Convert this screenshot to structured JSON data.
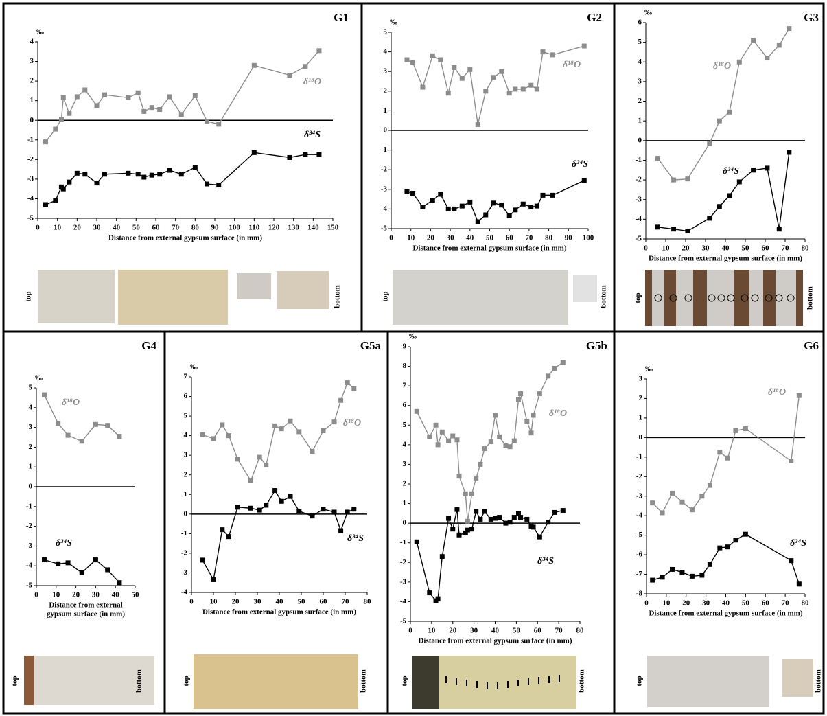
{
  "chart_data": [
    {
      "type": "line",
      "title": "G1",
      "y_unit": "‰",
      "x_label": "Distance from external gypsum surface (in mm)",
      "x": [
        4,
        9,
        12,
        13,
        16,
        20,
        24,
        30,
        34,
        46,
        51,
        54,
        58,
        62,
        67,
        73,
        80,
        86,
        92,
        110,
        128,
        136,
        143
      ],
      "series": [
        {
          "name": "δ¹⁸O",
          "color": "#8c8c8c",
          "values": [
            -1.1,
            -0.45,
            0.05,
            1.15,
            0.35,
            1.2,
            1.55,
            0.75,
            1.3,
            1.15,
            1.4,
            0.45,
            0.65,
            0.55,
            1.2,
            0.3,
            1.25,
            -0.05,
            -0.2,
            2.8,
            2.3,
            2.75,
            3.55
          ]
        },
        {
          "name": "δ³⁴S",
          "color": "#000000",
          "values": [
            -4.3,
            -4.1,
            -3.4,
            -3.5,
            -3.15,
            -2.7,
            -2.75,
            -3.2,
            -2.75,
            -2.7,
            -2.75,
            -2.9,
            -2.8,
            -2.75,
            -2.55,
            -2.75,
            -2.4,
            -3.25,
            -3.3,
            -1.65,
            -1.9,
            -1.75,
            -1.75
          ]
        }
      ],
      "xlim": [
        0,
        150
      ],
      "xticks": [
        0,
        10,
        20,
        30,
        40,
        50,
        60,
        70,
        80,
        90,
        100,
        110,
        120,
        130,
        140,
        150
      ],
      "ylim": [
        -5,
        4
      ],
      "yticks": [
        -5,
        -4,
        -3,
        -2,
        -1,
        0,
        1,
        2,
        3,
        4
      ],
      "photo_labels": [
        "top",
        "bottom"
      ]
    },
    {
      "type": "line",
      "title": "G2",
      "y_unit": "‰",
      "x_label": "Distance from external gypsum surface (in mm)",
      "x": [
        8,
        11,
        16,
        21,
        25,
        29,
        32,
        36,
        40,
        44,
        48,
        52,
        56,
        60,
        63,
        67,
        71,
        74,
        77,
        82,
        98
      ],
      "series": [
        {
          "name": "δ¹⁸O",
          "color": "#8c8c8c",
          "values": [
            3.6,
            3.45,
            2.2,
            3.8,
            3.6,
            1.9,
            3.2,
            2.65,
            3.1,
            0.3,
            2.0,
            2.7,
            3.0,
            1.9,
            2.1,
            2.1,
            2.3,
            2.1,
            4.0,
            3.85,
            4.3
          ]
        },
        {
          "name": "δ³⁴S",
          "color": "#000000",
          "values": [
            -3.1,
            -3.2,
            -3.9,
            -3.55,
            -3.25,
            -4.0,
            -4.0,
            -3.85,
            -3.65,
            -4.65,
            -4.3,
            -3.7,
            -3.8,
            -4.35,
            -4.05,
            -3.75,
            -3.9,
            -3.85,
            -3.3,
            -3.3,
            -2.55
          ]
        }
      ],
      "xlim": [
        0,
        100
      ],
      "xticks": [
        0,
        10,
        20,
        30,
        40,
        50,
        60,
        70,
        80,
        90,
        100
      ],
      "ylim": [
        -5,
        5
      ],
      "yticks": [
        -5,
        -4,
        -3,
        -2,
        -1,
        0,
        1,
        2,
        3,
        4,
        5
      ],
      "photo_labels": [
        "top",
        "bottom"
      ]
    },
    {
      "type": "line",
      "title": "G3",
      "y_unit": "‰",
      "x_label": "Distance from external gypsum surface (in mm)",
      "x": [
        6,
        14,
        21,
        32,
        37,
        42,
        47,
        54,
        61,
        67,
        72
      ],
      "series": [
        {
          "name": "δ¹⁸O",
          "color": "#8c8c8c",
          "values": [
            -0.9,
            -2.0,
            -1.95,
            -0.15,
            1.0,
            1.45,
            4.0,
            5.1,
            4.2,
            4.85,
            5.7
          ]
        },
        {
          "name": "δ³⁴S",
          "color": "#000000",
          "values": [
            -4.4,
            -4.5,
            -4.6,
            -3.95,
            -3.35,
            -2.8,
            -2.1,
            -1.5,
            -1.4,
            -4.5,
            -0.6
          ]
        }
      ],
      "xlim": [
        0,
        80
      ],
      "xticks": [
        0,
        10,
        20,
        30,
        40,
        50,
        60,
        70,
        80
      ],
      "ylim": [
        -5,
        6
      ],
      "yticks": [
        -5,
        -4,
        -3,
        -2,
        -1,
        0,
        1,
        2,
        3,
        4,
        5,
        6
      ],
      "photo_labels": [
        "top",
        "bottom"
      ]
    },
    {
      "type": "line",
      "title": "G4",
      "y_unit": "‰",
      "x_label": [
        "Distance from external",
        "gypsum surface (in mm)"
      ],
      "x": [
        4,
        11,
        16,
        23,
        30,
        36,
        42
      ],
      "series": [
        {
          "name": "δ¹⁸O",
          "color": "#8c8c8c",
          "values": [
            4.65,
            3.2,
            2.6,
            2.3,
            3.15,
            3.1,
            2.55
          ]
        },
        {
          "name": "δ³⁴S",
          "color": "#000000",
          "values": [
            -3.7,
            -3.9,
            -3.85,
            -4.35,
            -3.7,
            -4.2,
            -4.85
          ]
        }
      ],
      "xlim": [
        0,
        50
      ],
      "xticks": [
        0,
        10,
        20,
        30,
        40,
        50
      ],
      "ylim": [
        -5,
        5
      ],
      "yticks": [
        -5,
        -4,
        -3,
        -2,
        -1,
        0,
        1,
        2,
        3,
        4,
        5
      ],
      "photo_labels": [
        "top",
        "bottom"
      ]
    },
    {
      "type": "line",
      "title": "G5a",
      "y_unit": "‰",
      "x_label": "Distance from external gypsum surface (in mm)",
      "x": [
        5,
        10,
        14,
        17,
        21,
        27,
        31,
        34,
        38,
        41,
        45,
        49,
        55,
        60,
        65,
        68,
        71,
        74
      ],
      "series": [
        {
          "name": "δ¹⁸O",
          "color": "#8c8c8c",
          "values": [
            4.05,
            3.85,
            4.55,
            4.0,
            2.8,
            1.7,
            2.9,
            2.5,
            4.5,
            4.35,
            4.75,
            4.2,
            3.2,
            4.25,
            4.7,
            5.8,
            6.7,
            6.4
          ]
        },
        {
          "name": "δ³⁴S",
          "color": "#000000",
          "values": [
            -2.35,
            -3.35,
            -0.8,
            -1.15,
            0.35,
            0.3,
            0.2,
            0.45,
            1.2,
            0.65,
            0.9,
            0.15,
            -0.1,
            0.25,
            0.1,
            -0.85,
            0.1,
            0.25
          ]
        }
      ],
      "xlim": [
        0,
        80
      ],
      "xticks": [
        0,
        10,
        20,
        30,
        40,
        50,
        60,
        70,
        80
      ],
      "ylim": [
        -4,
        7
      ],
      "yticks": [
        -4,
        -3,
        -2,
        -1,
        0,
        1,
        2,
        3,
        4,
        5,
        6,
        7
      ],
      "photo_labels": [
        "top",
        "bottom"
      ]
    },
    {
      "type": "line",
      "title": "G5b",
      "y_unit": "‰",
      "x_label": "Distance from external gypsum surface (in mm)",
      "x": [
        3,
        9,
        12,
        13,
        15,
        18,
        20,
        22,
        23,
        26,
        27,
        29,
        31,
        33,
        35,
        38,
        40,
        42,
        45,
        47,
        49,
        51,
        52,
        55,
        57,
        58,
        61,
        65,
        68,
        72
      ],
      "series": [
        {
          "name": "δ¹⁸O",
          "color": "#8c8c8c",
          "values": [
            5.7,
            4.4,
            5.0,
            4.0,
            4.65,
            4.2,
            4.45,
            4.25,
            2.4,
            1.5,
            0.1,
            1.5,
            2.3,
            3.0,
            3.8,
            4.15,
            5.5,
            4.4,
            3.95,
            3.9,
            4.2,
            6.3,
            6.6,
            5.2,
            4.6,
            5.5,
            6.6,
            7.5,
            7.9,
            8.2
          ]
        },
        {
          "name": "δ³⁴S",
          "color": "#000000",
          "values": [
            -0.95,
            -3.55,
            -3.95,
            -3.85,
            -1.7,
            0.25,
            -0.3,
            0.7,
            -0.6,
            -0.5,
            -0.35,
            -0.3,
            0.6,
            0.2,
            0.6,
            0.2,
            0.25,
            0.3,
            0.0,
            0.05,
            0.3,
            0.5,
            0.3,
            0.2,
            -0.15,
            -0.2,
            -0.7,
            0.05,
            0.55,
            0.65
          ]
        }
      ],
      "xlim": [
        0,
        80
      ],
      "xticks": [
        0,
        10,
        20,
        30,
        40,
        50,
        60,
        70,
        80
      ],
      "ylim": [
        -5,
        9
      ],
      "yticks": [
        -5,
        -4,
        -3,
        -2,
        -1,
        0,
        1,
        2,
        3,
        4,
        5,
        6,
        7,
        8,
        9
      ],
      "photo_labels": [
        "top",
        "bottom"
      ]
    },
    {
      "type": "line",
      "title": "G6",
      "y_unit": "‰",
      "x_label": "Distance from external gypsum surface (in mm)",
      "x": [
        3,
        8,
        13,
        18,
        23,
        28,
        32,
        37,
        41,
        45,
        50,
        73,
        77
      ],
      "series": [
        {
          "name": "δ¹⁸O",
          "color": "#8c8c8c",
          "values": [
            -3.35,
            -3.85,
            -2.85,
            -3.3,
            -3.7,
            -3.0,
            -2.45,
            -0.75,
            -1.05,
            0.35,
            0.45,
            -1.2,
            2.15
          ]
        },
        {
          "name": "δ³⁴S",
          "color": "#000000",
          "values": [
            -7.3,
            -7.15,
            -6.75,
            -6.9,
            -7.1,
            -7.05,
            -6.5,
            -5.65,
            -5.6,
            -5.25,
            -4.95,
            -6.3,
            -7.5
          ]
        }
      ],
      "xlim": [
        0,
        80
      ],
      "xticks": [
        0,
        10,
        20,
        30,
        40,
        50,
        60,
        70,
        80
      ],
      "ylim": [
        -8,
        3
      ],
      "yticks": [
        -8,
        -7,
        -6,
        -5,
        -4,
        -3,
        -2,
        -1,
        0,
        1,
        2,
        3
      ],
      "photo_labels": [
        "top",
        "bottom"
      ]
    }
  ]
}
